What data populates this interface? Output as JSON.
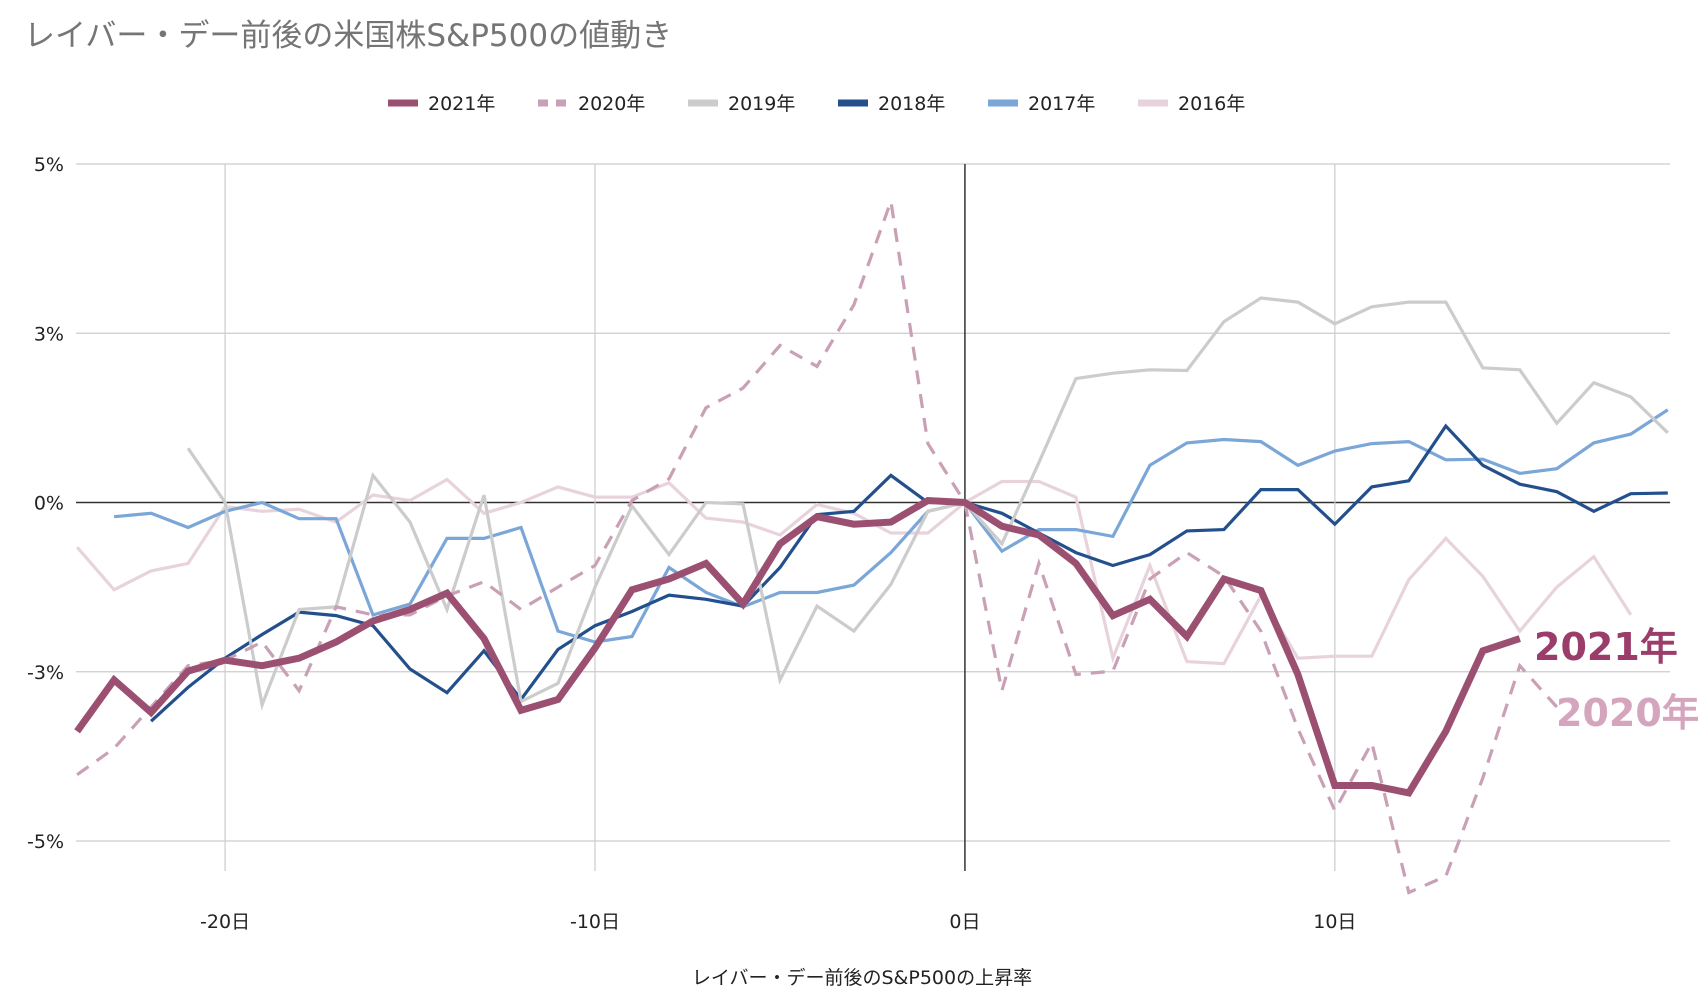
{
  "chart_data": {
    "type": "line",
    "title": "レイバー・デー前後の米国株S&P500の値動き",
    "xlabel": "レイバー・デー前後のS&P500の上昇率",
    "ylabel": "",
    "xlim": [
      -24,
      19
    ],
    "ylim": [
      -5,
      5
    ],
    "grid": true,
    "legend": "top",
    "x_ticks": [
      {
        "value": -20,
        "label": "-20日"
      },
      {
        "value": -10,
        "label": "-10日"
      },
      {
        "value": 0,
        "label": "0日"
      },
      {
        "value": 10,
        "label": "10日"
      }
    ],
    "y_ticks": [
      {
        "value": 5,
        "label": "5%"
      },
      {
        "value": 2.5,
        "label": "3%"
      },
      {
        "value": 0,
        "label": "0%"
      },
      {
        "value": -2.5,
        "label": "-3%"
      },
      {
        "value": -5,
        "label": "-5%"
      }
    ],
    "series": [
      {
        "name": "2021年",
        "color": "#9b5072",
        "dashed": false,
        "thick": true,
        "start_x": -24,
        "end_label": "2021年",
        "end_label_color": "#9b3d6a",
        "values": [
          -3.38,
          -2.62,
          -3.1,
          -2.49,
          -2.33,
          -2.41,
          -2.3,
          -2.06,
          -1.75,
          -1.58,
          -1.34,
          -2.01,
          -3.07,
          -2.91,
          -2.15,
          -1.29,
          -1.13,
          -0.9,
          -1.5,
          -0.61,
          -0.21,
          -0.32,
          -0.29,
          0.03,
          0,
          -0.35,
          -0.48,
          -0.9,
          -1.67,
          -1.43,
          -1.98,
          -1.13,
          -1.3,
          -2.54,
          -4.18,
          -4.18,
          -4.29,
          -3.38,
          -2.19,
          -2.01
        ]
      },
      {
        "name": "2020年",
        "color": "#c9a0b6",
        "dashed": true,
        "thick": false,
        "start_x": -24,
        "end_label": "2020年",
        "end_label_color": "#d4a5bd",
        "values": [
          -4.02,
          -3.63,
          -3.02,
          -2.41,
          -2.33,
          -2.06,
          -2.78,
          -1.54,
          -1.66,
          -1.66,
          -1.38,
          -1.17,
          -1.58,
          -1.25,
          -0.93,
          0.03,
          0.35,
          1.4,
          1.69,
          2.32,
          2.01,
          2.92,
          4.45,
          0.87,
          0,
          -2.78,
          -0.9,
          -2.54,
          -2.49,
          -1.13,
          -0.74,
          -1.09,
          -1.9,
          -3.34,
          -4.55,
          -3.55,
          -5.76,
          -5.52,
          -4.07,
          -2.41,
          -3.02
        ]
      },
      {
        "name": "2019年",
        "color": "#cccccc",
        "dashed": false,
        "thick": false,
        "start_x": -21,
        "values": [
          0.8,
          0,
          -2.99,
          -1.58,
          -1.54,
          0.4,
          -0.29,
          -1.58,
          0.11,
          -2.94,
          -2.67,
          -1.25,
          -0.05,
          -0.77,
          0,
          -0.02,
          -2.62,
          -1.53,
          -1.9,
          -1.21,
          -0.13,
          0,
          -0.61,
          0.59,
          1.83,
          1.91,
          1.96,
          1.95,
          2.67,
          3.02,
          2.96,
          2.64,
          2.89,
          2.96,
          2.96,
          1.99,
          1.96,
          1.17,
          1.77,
          1.56,
          1.03
        ]
      },
      {
        "name": "2018年",
        "color": "#23508c",
        "dashed": false,
        "thick": false,
        "start_x": -22,
        "values": [
          -3.23,
          -2.73,
          -2.3,
          -1.95,
          -1.62,
          -1.67,
          -1.82,
          -2.46,
          -2.81,
          -2.19,
          -2.91,
          -2.17,
          -1.82,
          -1.61,
          -1.37,
          -1.43,
          -1.53,
          -0.96,
          -0.18,
          -0.13,
          0.4,
          0,
          0,
          -0.16,
          -0.45,
          -0.74,
          -0.93,
          -0.77,
          -0.42,
          -0.4,
          0.19,
          0.19,
          -0.32,
          0.23,
          0.32,
          1.13,
          0.55,
          0.27,
          0.16,
          -0.13,
          0.13,
          0.14
        ]
      },
      {
        "name": "2017年",
        "color": "#7aa6d8",
        "dashed": false,
        "thick": false,
        "start_x": -23,
        "values": [
          -0.21,
          -0.16,
          -0.37,
          -0.13,
          0,
          -0.24,
          -0.24,
          -1.66,
          -1.5,
          -0.53,
          -0.53,
          -0.37,
          -1.9,
          -2.06,
          -1.98,
          -0.96,
          -1.33,
          -1.54,
          -1.33,
          -1.33,
          -1.22,
          -0.74,
          -0.13,
          0,
          -0.72,
          -0.4,
          -0.4,
          -0.5,
          0.55,
          0.88,
          0.93,
          0.9,
          0.55,
          0.76,
          0.87,
          0.9,
          0.63,
          0.64,
          0.43,
          0.5,
          0.88,
          1.01,
          1.37
        ]
      },
      {
        "name": "2016年",
        "color": "#e8d3dd",
        "dashed": false,
        "thick": false,
        "start_x": -24,
        "values": [
          -0.66,
          -1.29,
          -1.01,
          -0.9,
          -0.06,
          -0.13,
          -0.1,
          -0.29,
          0.11,
          0.03,
          0.34,
          -0.16,
          0,
          0.23,
          0.08,
          0.08,
          0.29,
          -0.23,
          -0.29,
          -0.48,
          -0.03,
          -0.16,
          -0.45,
          -0.45,
          0,
          0.31,
          0.31,
          0.08,
          -2.3,
          -0.93,
          -2.35,
          -2.38,
          -1.38,
          -2.3,
          -2.27,
          -2.27,
          -1.14,
          -0.53,
          -1.09,
          -1.9,
          -1.25,
          -0.8,
          -1.66
        ]
      }
    ]
  }
}
